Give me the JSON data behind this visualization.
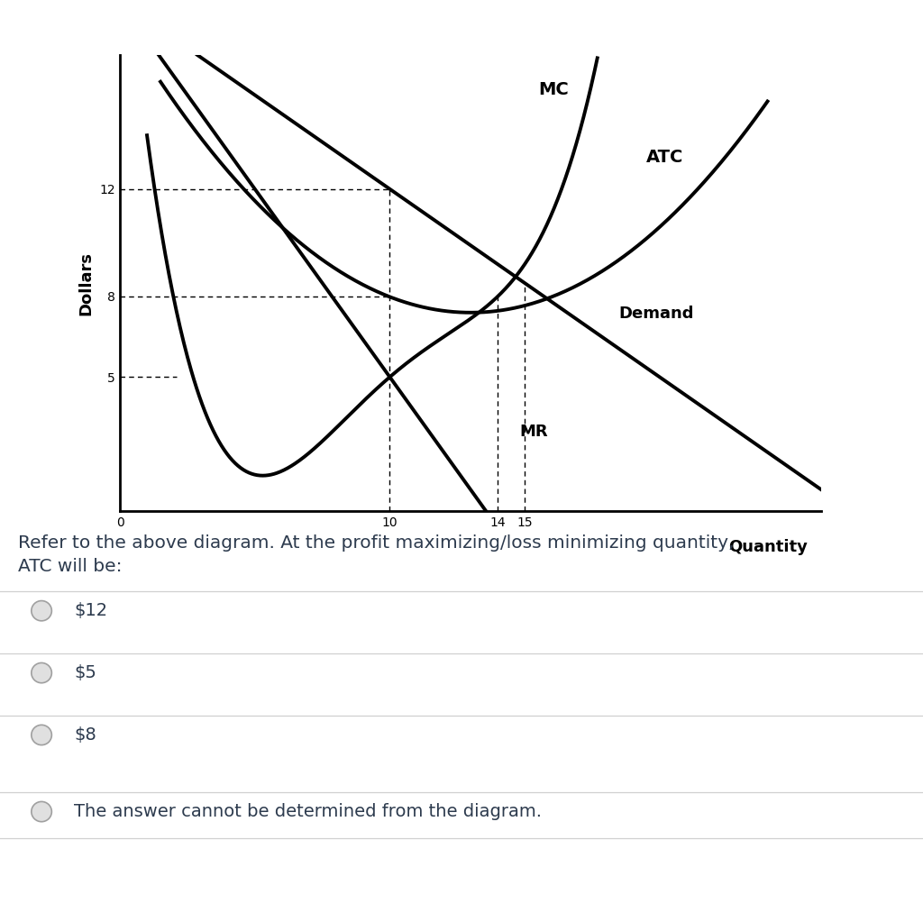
{
  "title": "",
  "ylabel": "Dollars",
  "xlabel": "Quantity",
  "xlim": [
    0,
    26
  ],
  "ylim": [
    0,
    17
  ],
  "yticks": [
    5,
    8,
    12
  ],
  "xtick_labels": [
    "0",
    "10",
    "14",
    "15"
  ],
  "background_color": "#ffffff",
  "question_text": "Refer to the above diagram. At the profit maximizing/loss minimizing quantity,\nATC will be:",
  "choices": [
    "$12",
    "$5",
    "$8",
    "The answer cannot be determined from the diagram."
  ],
  "lw": 2.8
}
